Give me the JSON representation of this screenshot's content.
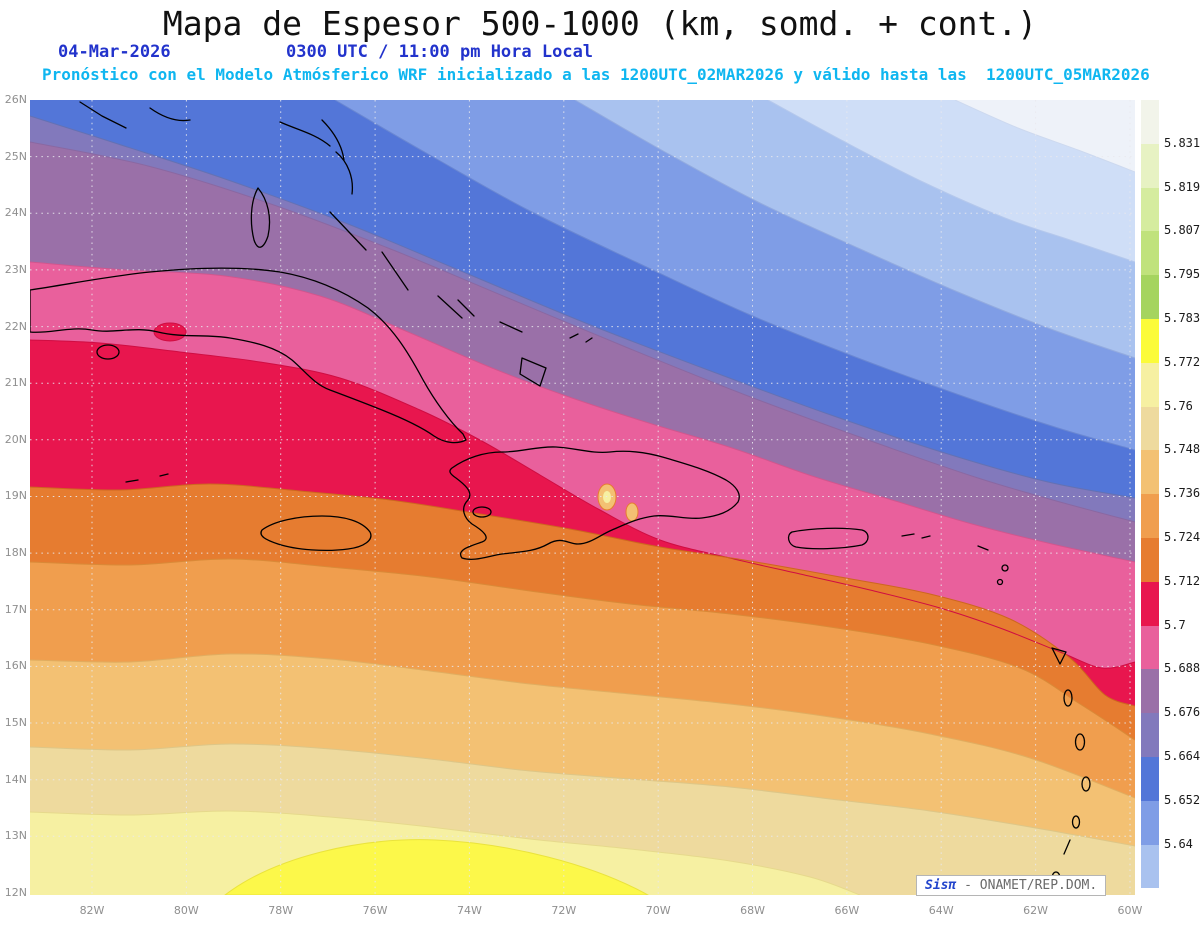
{
  "title": "Mapa de Espesor 500-1000 (km, somd. + cont.)",
  "subtitle": {
    "date": "04-Mar-2026",
    "time": "0300 UTC / 11:00 pm Hora Local"
  },
  "forecast_line": "Pronóstico con el Modelo Atmósferico WRF inicializado a las 1200UTC_02MAR2026 y válido hasta las  1200UTC_05MAR2026",
  "watermark": {
    "brand": "Sisπ",
    "org": " - ONAMET/REP.DOM."
  },
  "axes": {
    "lat_labels": [
      "26N",
      "25N",
      "24N",
      "23N",
      "22N",
      "21N",
      "20N",
      "19N",
      "18N",
      "17N",
      "16N",
      "15N",
      "14N",
      "13N",
      "12N"
    ],
    "lon_labels": [
      "82W",
      "80W",
      "78W",
      "76W",
      "74W",
      "72W",
      "70W",
      "68W",
      "66W",
      "64W",
      "62W",
      "60W"
    ]
  },
  "legend": {
    "labels": [
      "5.831",
      "5.819",
      "5.807",
      "5.795",
      "5.783",
      "5.772",
      "5.76",
      "5.748",
      "5.736",
      "5.724",
      "5.712",
      "5.7",
      "5.688",
      "5.676",
      "5.664",
      "5.652",
      "5.64"
    ],
    "colors": [
      "#f2f4ea",
      "#e7f2c3",
      "#d5ec9f",
      "#c0e27c",
      "#a5d45f",
      "#fbfb3a",
      "#f6f0a2",
      "#eeda9e",
      "#f3c173",
      "#f09e4e",
      "#e67c30",
      "#e8164e",
      "#e9609c",
      "#9a70a8",
      "#8279bc",
      "#5376d8",
      "#7f9de6",
      "#a9c2ef"
    ]
  },
  "chart_data": {
    "type": "heatmap",
    "title": "Mapa de Espesor 500-1000 (km, somd. + cont.)",
    "units": "km",
    "lat_range": [
      12,
      26
    ],
    "lon_range_west_to_east": [
      -83.3,
      -59.9
    ],
    "legend_levels": [
      5.64,
      5.652,
      5.664,
      5.676,
      5.688,
      5.7,
      5.712,
      5.724,
      5.736,
      5.748,
      5.76,
      5.772,
      5.783,
      5.795,
      5.807,
      5.819,
      5.831
    ],
    "gradient_note": "Thickness decreases from ~5.78 km in the south-west (yellow) to ~5.63 km in the north-east (very light blue); contour bands slope down from west to east.",
    "grid": "dotted, 1° latitude × 2° longitude",
    "bands": [
      {
        "name": "yellow",
        "range": "5.772-5.783",
        "color": "#fcf84a"
      },
      {
        "name": "pale-yellow",
        "range": "5.76-5.772",
        "color": "#f6f0a2"
      },
      {
        "name": "wheat",
        "range": "5.748-5.76",
        "color": "#eeda9e"
      },
      {
        "name": "sandy",
        "range": "5.736-5.748",
        "color": "#f3c173"
      },
      {
        "name": "orange",
        "range": "5.724-5.736",
        "color": "#f09e4e"
      },
      {
        "name": "dark-orange",
        "range": "5.712-5.724",
        "color": "#e67c30"
      },
      {
        "name": "crimson",
        "range": "5.7-5.712",
        "color": "#e8164e"
      },
      {
        "name": "pink",
        "range": "5.688-5.7",
        "color": "#e9609c"
      },
      {
        "name": "mauve",
        "range": "5.676-5.688",
        "color": "#9a70a8"
      },
      {
        "name": "slate",
        "range": "5.664-5.676",
        "color": "#8279bc"
      },
      {
        "name": "blue",
        "range": "5.652-5.664",
        "color": "#5376d8"
      },
      {
        "name": "periwinkle",
        "range": "5.64-5.652",
        "color": "#7f9de6"
      },
      {
        "name": "light-blue",
        "range": "<5.64",
        "color": "#a9c2ef"
      },
      {
        "name": "very-light-blue",
        "range": "<5.64",
        "color": "#cfdef7"
      },
      {
        "name": "white",
        "range": "<5.64",
        "color": "#eef2f9"
      }
    ]
  }
}
